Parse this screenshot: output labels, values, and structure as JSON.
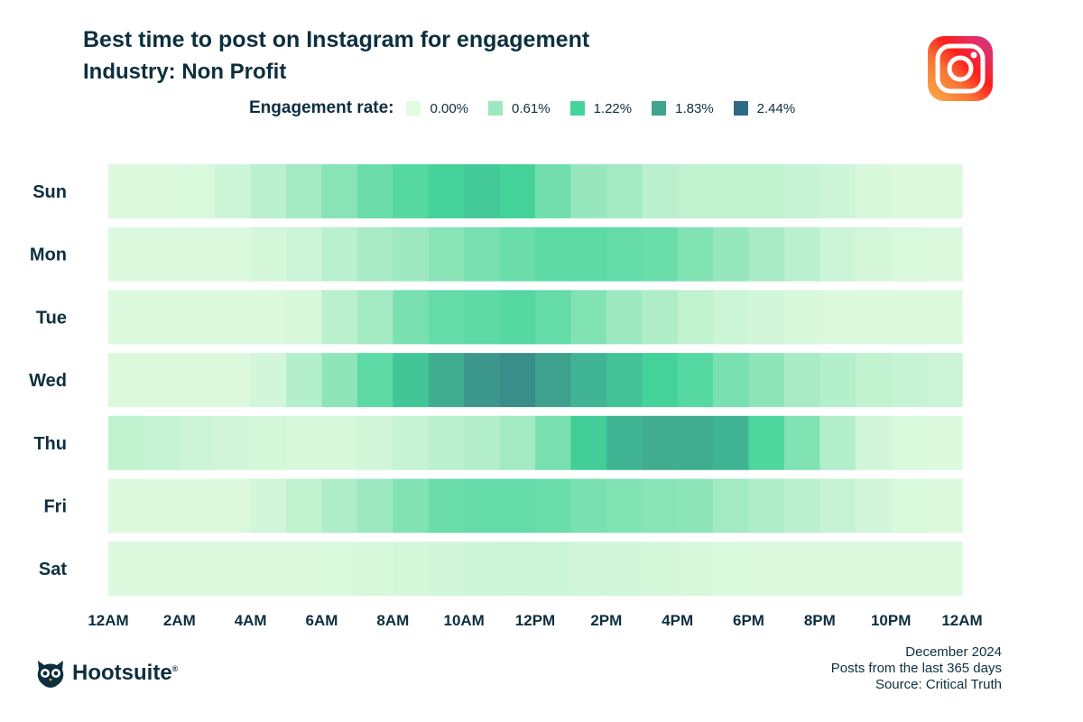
{
  "header": {
    "title": "Best time to post on Instagram for engagement",
    "subtitle": "Industry: Non Profit"
  },
  "legend": {
    "title": "Engagement rate:",
    "items": [
      {
        "label": "0.00%",
        "color": "#e2fbe1"
      },
      {
        "label": "0.61%",
        "color": "#9ce8bf"
      },
      {
        "label": "1.22%",
        "color": "#44d49b"
      },
      {
        "label": "1.83%",
        "color": "#3fa38e"
      },
      {
        "label": "2.44%",
        "color": "#2f6a82"
      }
    ]
  },
  "footer": {
    "date": "December 2024",
    "posts": "Posts from the last 365 days",
    "source": "Source: Critical Truth"
  },
  "brand": {
    "name": "Hootsuite",
    "mark": "®",
    "logo_icon": "owl-logo-icon",
    "platform_icon": "instagram-icon"
  },
  "chart_data": {
    "type": "heatmap",
    "title": "Best time to post on Instagram for engagement",
    "subtitle": "Industry: Non Profit",
    "rows": [
      "Sun",
      "Mon",
      "Tue",
      "Wed",
      "Thu",
      "Fri",
      "Sat"
    ],
    "x_tick_labels": [
      "12AM",
      "2AM",
      "4AM",
      "6AM",
      "8AM",
      "10AM",
      "12PM",
      "2PM",
      "4PM",
      "6PM",
      "8PM",
      "10PM",
      "12AM"
    ],
    "hours": [
      0,
      1,
      2,
      3,
      4,
      5,
      6,
      7,
      8,
      9,
      10,
      11,
      12,
      13,
      14,
      15,
      16,
      17,
      18,
      19,
      20,
      21,
      22,
      23
    ],
    "value_range": [
      0,
      2.44
    ],
    "unit": "%",
    "values": [
      [
        0.05,
        0.05,
        0.08,
        0.2,
        0.35,
        0.55,
        0.75,
        0.95,
        1.1,
        1.25,
        1.35,
        1.25,
        0.9,
        0.65,
        0.55,
        0.35,
        0.3,
        0.3,
        0.3,
        0.25,
        0.18,
        0.1,
        0.05,
        0.05
      ],
      [
        0.05,
        0.05,
        0.05,
        0.05,
        0.12,
        0.2,
        0.35,
        0.5,
        0.6,
        0.75,
        0.85,
        0.95,
        1.05,
        1.05,
        1.0,
        0.95,
        0.8,
        0.65,
        0.5,
        0.35,
        0.2,
        0.12,
        0.08,
        0.05
      ],
      [
        0.05,
        0.05,
        0.05,
        0.05,
        0.05,
        0.1,
        0.35,
        0.55,
        0.85,
        1.0,
        1.05,
        1.1,
        1.0,
        0.8,
        0.6,
        0.45,
        0.3,
        0.2,
        0.15,
        0.1,
        0.05,
        0.05,
        0.05,
        0.05
      ],
      [
        0.05,
        0.05,
        0.05,
        0.05,
        0.15,
        0.4,
        0.7,
        1.05,
        1.4,
        1.7,
        1.95,
        2.05,
        1.85,
        1.6,
        1.45,
        1.25,
        1.1,
        0.85,
        0.7,
        0.5,
        0.4,
        0.3,
        0.25,
        0.2
      ],
      [
        0.3,
        0.25,
        0.2,
        0.15,
        0.12,
        0.1,
        0.1,
        0.15,
        0.25,
        0.35,
        0.4,
        0.55,
        0.85,
        1.3,
        1.6,
        1.7,
        1.7,
        1.6,
        1.15,
        0.8,
        0.4,
        0.15,
        0.08,
        0.05
      ],
      [
        0.05,
        0.05,
        0.05,
        0.05,
        0.15,
        0.3,
        0.45,
        0.6,
        0.8,
        0.95,
        1.0,
        1.0,
        0.95,
        0.85,
        0.8,
        0.75,
        0.7,
        0.55,
        0.45,
        0.35,
        0.25,
        0.15,
        0.08,
        0.05
      ],
      [
        0.05,
        0.05,
        0.05,
        0.05,
        0.05,
        0.05,
        0.08,
        0.1,
        0.12,
        0.15,
        0.18,
        0.2,
        0.18,
        0.15,
        0.15,
        0.12,
        0.1,
        0.08,
        0.05,
        0.05,
        0.05,
        0.05,
        0.05,
        0.05
      ]
    ],
    "legend_placement": "top",
    "grid": false
  }
}
